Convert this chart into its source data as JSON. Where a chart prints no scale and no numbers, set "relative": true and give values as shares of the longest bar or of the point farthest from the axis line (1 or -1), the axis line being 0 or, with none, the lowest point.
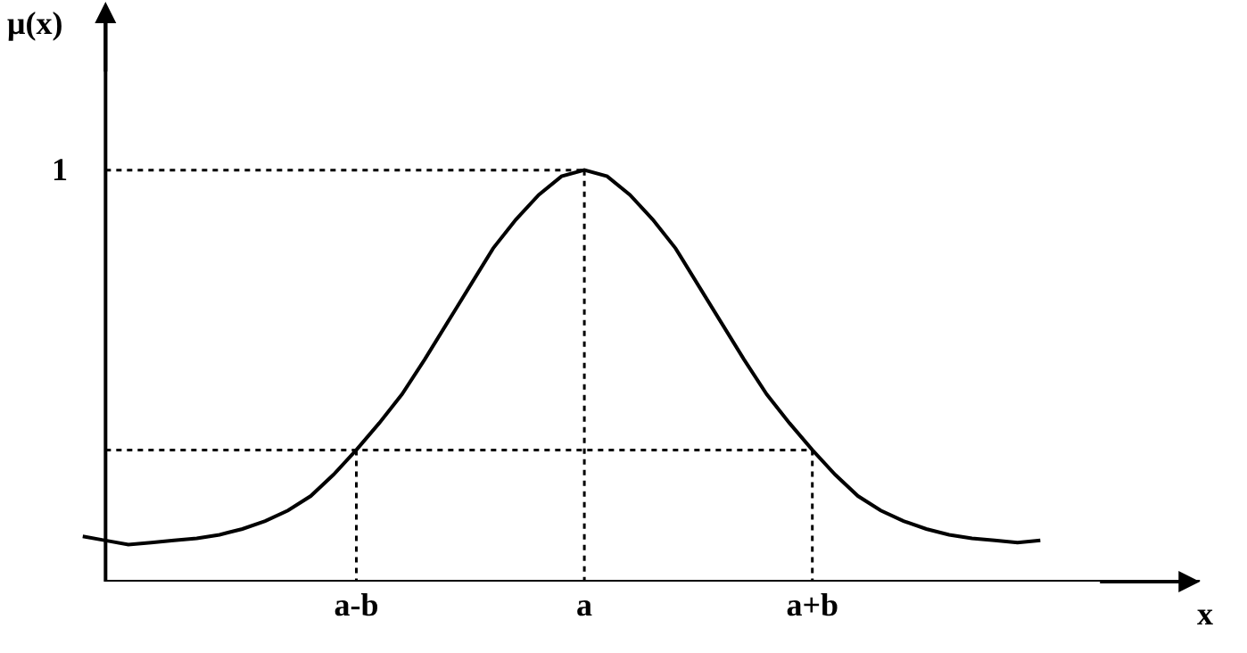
{
  "chart_data": {
    "type": "line",
    "relative": true,
    "xlabel": "x",
    "ylabel": "μ(x)",
    "categories": [
      null,
      null,
      null,
      null,
      null,
      null,
      null,
      null,
      null,
      null,
      null,
      null,
      "a-b",
      null,
      null,
      null,
      null,
      null,
      null,
      null,
      null,
      null,
      "a",
      null,
      null,
      null,
      null,
      null,
      null,
      null,
      null,
      null,
      "a+b",
      null,
      null,
      null,
      null,
      null,
      null,
      null,
      null,
      null,
      null
    ],
    "grid": false,
    "marker": "none",
    "line_style": "solid",
    "annotations": [
      "1"
    ],
    "series": [
      {
        "color": "#000000",
        "values": [
          0.11,
          0.1,
          0.09,
          0.095,
          0.1,
          0.105,
          0.114,
          0.128,
          0.147,
          0.173,
          0.208,
          0.26,
          0.32,
          0.385,
          0.455,
          0.54,
          0.63,
          0.72,
          0.81,
          0.88,
          0.94,
          0.985,
          1,
          0.985,
          0.94,
          0.88,
          0.81,
          0.72,
          0.63,
          0.54,
          0.455,
          0.385,
          0.32,
          0.26,
          0.208,
          0.173,
          0.147,
          0.128,
          0.114,
          0.105,
          0.1,
          0.095,
          0.1
        ]
      },
      {
        "color": "#000000",
        "line_style": "dashed",
        "values": [
          null,
          1,
          1,
          1,
          1,
          1,
          1,
          1,
          1,
          1,
          1,
          1,
          1,
          1,
          1,
          1,
          1,
          1,
          1,
          1,
          1,
          1,
          1,
          null,
          null,
          null,
          null,
          null,
          null,
          null,
          null,
          null,
          null,
          null,
          null,
          null,
          null,
          null,
          null,
          null,
          null,
          null,
          null
        ]
      },
      {
        "color": "#000000",
        "line_style": "dashed",
        "values": [
          null,
          0.32,
          0.32,
          0.32,
          0.32,
          0.32,
          0.32,
          0.32,
          0.32,
          0.32,
          0.32,
          0.32,
          0.32,
          0.32,
          0.32,
          0.32,
          0.32,
          0.32,
          0.32,
          0.32,
          0.32,
          0.32,
          0.32,
          0.32,
          0.32,
          0.32,
          0.32,
          0.32,
          0.32,
          0.32,
          0.32,
          0.32,
          0.32,
          null,
          null,
          null,
          null,
          null,
          null,
          null,
          null,
          null,
          null
        ]
      },
      {
        "color": "#000000",
        "line_style": "dashed",
        "x": [
          "a",
          "a"
        ],
        "values": [
          1,
          0
        ]
      },
      {
        "color": "#000000",
        "line_style": "dashed",
        "x": [
          "a-b",
          "a-b"
        ],
        "values": [
          0.32,
          0
        ]
      },
      {
        "color": "#000000",
        "line_style": "dashed",
        "x": [
          "a+b",
          "a+b"
        ],
        "values": [
          0.32,
          0
        ]
      }
    ]
  }
}
